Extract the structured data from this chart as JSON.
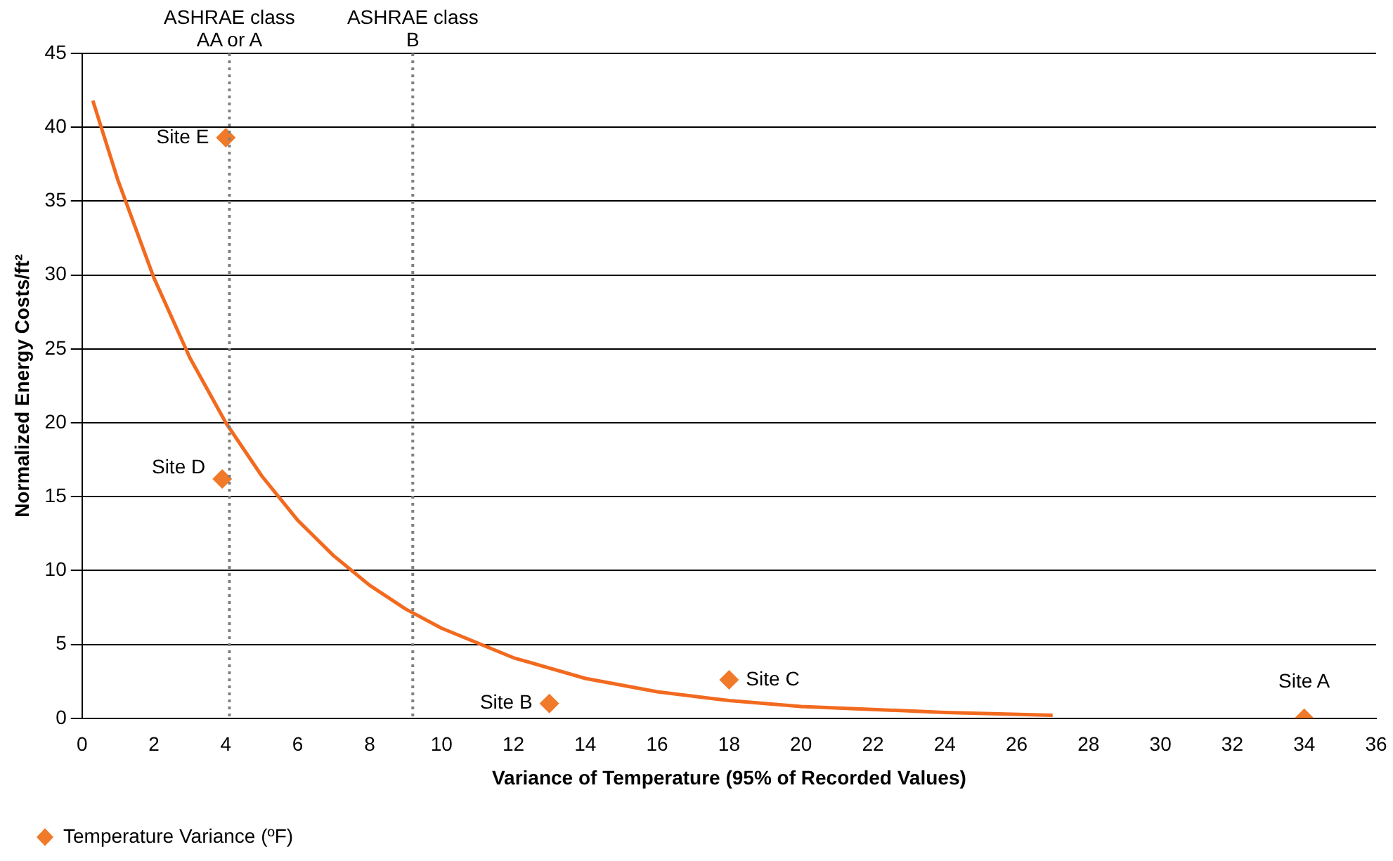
{
  "chart_data": {
    "type": "scatter",
    "xlabel": "Variance of Temperature (95% of Recorded Values)",
    "ylabel": "Normalized Energy Costs/ft²",
    "xlim": [
      0,
      36
    ],
    "xticks": [
      0,
      2,
      4,
      6,
      8,
      10,
      12,
      14,
      16,
      18,
      20,
      22,
      24,
      26,
      28,
      30,
      32,
      34,
      36
    ],
    "ylim": [
      0,
      45
    ],
    "yticks": [
      0,
      5,
      10,
      15,
      20,
      25,
      30,
      35,
      40,
      45
    ],
    "grid": "y",
    "legend": "bottom left",
    "marker": "diamond",
    "series": [
      {
        "name": "Temperature Variance (ºF)",
        "type": "scatter",
        "color": "#f07a2a",
        "x": [
          34,
          13,
          18,
          3.9,
          4
        ],
        "values": [
          0,
          1.0,
          2.6,
          16.2,
          39.3
        ]
      },
      {
        "type": "line",
        "color": "#f26a1f",
        "marker": "none",
        "line_style": "solid",
        "x": [
          0.3,
          1,
          2,
          3,
          4,
          5,
          6,
          7,
          8,
          9,
          10,
          12,
          14,
          16,
          18,
          20,
          22,
          24,
          27
        ],
        "values": [
          41.8,
          36.4,
          29.8,
          24.4,
          20.0,
          16.4,
          13.4,
          11.0,
          9.0,
          7.4,
          6.1,
          4.1,
          2.7,
          1.8,
          1.2,
          0.8,
          0.6,
          0.4,
          0.2
        ]
      }
    ],
    "ref_lines": [
      {
        "axis": "x",
        "value": 4.1,
        "label": "ASHRAE class\nAA or A",
        "color": "#808080",
        "line_style": "dotted"
      },
      {
        "axis": "x",
        "value": 9.2,
        "label": "ASHRAE class\nB",
        "color": "#808080",
        "line_style": "dotted"
      }
    ],
    "annotations": [
      {
        "text": "Site A",
        "x": 34,
        "y": 0
      },
      {
        "text": "Site B",
        "x": 13,
        "y": 1.0
      },
      {
        "text": "Site C",
        "x": 18,
        "y": 2.6
      },
      {
        "text": "Site D",
        "x": 3.9,
        "y": 16.2
      },
      {
        "text": "Site E",
        "x": 4,
        "y": 39.3
      }
    ]
  }
}
